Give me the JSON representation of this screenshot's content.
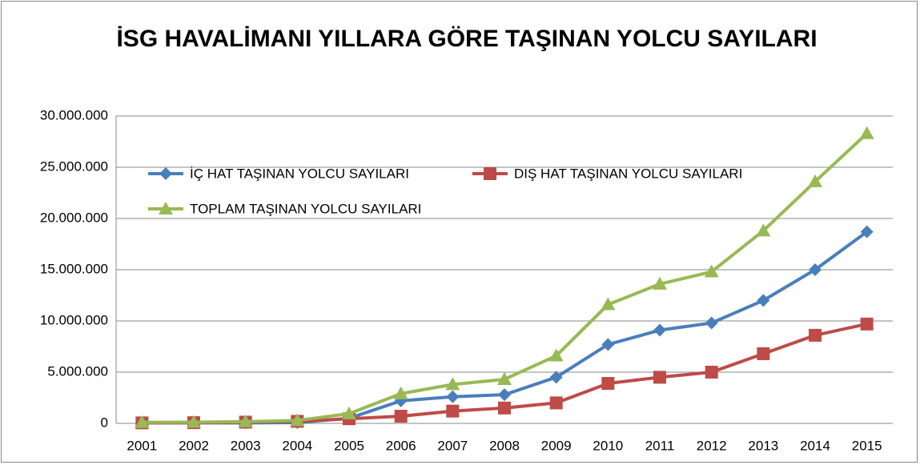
{
  "chart_data": {
    "type": "line",
    "title": "İSG HAVALİMANI YILLARA GÖRE TAŞINAN YOLCU SAYILARI",
    "categories": [
      "2001",
      "2002",
      "2003",
      "2004",
      "2005",
      "2006",
      "2007",
      "2008",
      "2009",
      "2010",
      "2011",
      "2012",
      "2013",
      "2014",
      "2015"
    ],
    "series": [
      {
        "name": "İÇ HAT TAŞINAN YOLCU SAYILARI",
        "color": "#4a7ebb",
        "marker": "diamond",
        "values": [
          50000,
          50000,
          50000,
          80000,
          500000,
          2200000,
          2600000,
          2800000,
          4500000,
          7700000,
          9100000,
          9800000,
          12000000,
          15000000,
          18700000
        ]
      },
      {
        "name": "DIŞ HAT TAŞINAN YOLCU SAYILARI",
        "color": "#be4b48",
        "marker": "square",
        "values": [
          50000,
          70000,
          120000,
          200000,
          450000,
          700000,
          1200000,
          1500000,
          2000000,
          3900000,
          4500000,
          5000000,
          6800000,
          8600000,
          9700000
        ]
      },
      {
        "name": "TOPLAM TAŞINAN YOLCU SAYILARI",
        "color": "#98b954",
        "marker": "triangle",
        "values": [
          100000,
          120000,
          170000,
          280000,
          950000,
          2900000,
          3800000,
          4300000,
          6600000,
          11600000,
          13600000,
          14800000,
          18800000,
          23600000,
          28300000
        ]
      }
    ],
    "ylim": [
      0,
      30000000
    ],
    "yticks": [
      0,
      {
        "value": 5000000,
        "label": "5.000.000"
      },
      {
        "value": 10000000,
        "label": "10.000.000"
      },
      {
        "value": 15000000,
        "label": "15.000.000"
      },
      {
        "value": 20000000,
        "label": "20.000.000"
      },
      {
        "value": 25000000,
        "label": "25.000.000"
      },
      {
        "value": 30000000,
        "label": "30.000.000"
      }
    ],
    "grid": true
  }
}
